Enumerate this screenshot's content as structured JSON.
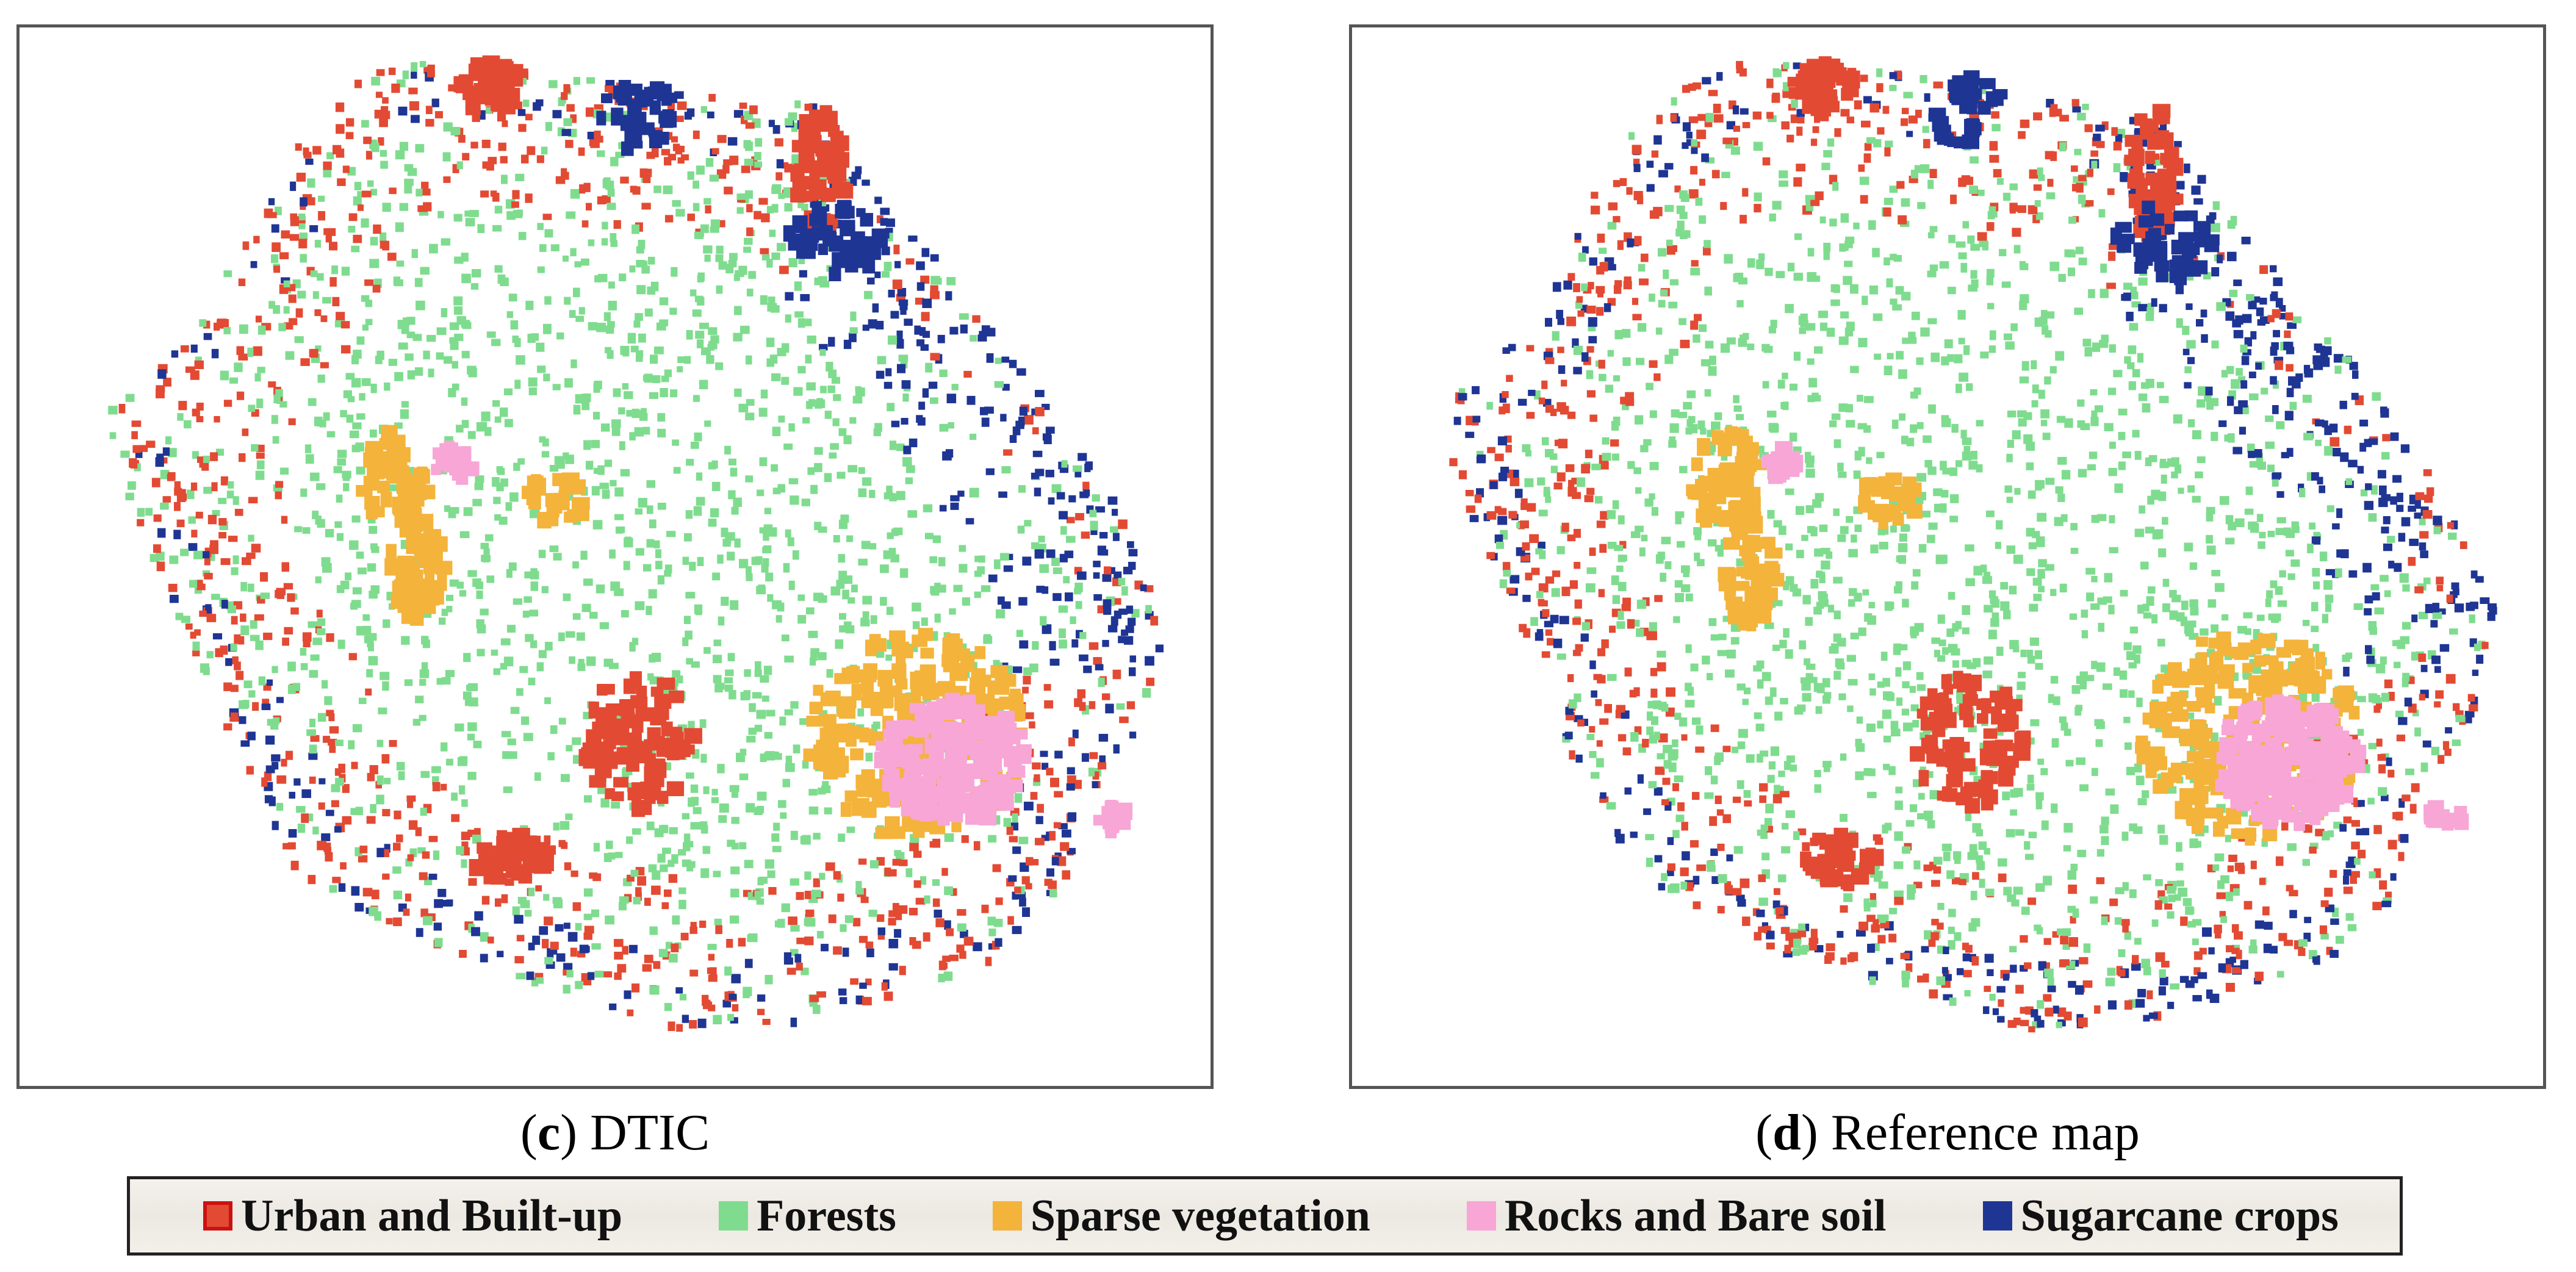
{
  "panels": [
    {
      "letter": "c",
      "title": "DTIC"
    },
    {
      "letter": "d",
      "title": "Reference map"
    }
  ],
  "legend": {
    "items": [
      {
        "key": "urban",
        "label": "Urban and Built-up",
        "color": "#e34a33"
      },
      {
        "key": "forest",
        "label": "Forests",
        "color": "#7fdc8f"
      },
      {
        "key": "sparse",
        "label": "Sparse vegetation",
        "color": "#f4b33b"
      },
      {
        "key": "rocks",
        "label": "Rocks and Bare soil",
        "color": "#f7a6d6"
      },
      {
        "key": "sugarcane",
        "label": "Sugarcane crops",
        "color": "#1f3594"
      }
    ]
  },
  "colors": {
    "urban": "#e34a33",
    "forest": "#7fdc8f",
    "sparse": "#f4b33b",
    "rocks": "#f7a6d6",
    "sugarcane": "#1f3594",
    "frame": "#555555"
  }
}
